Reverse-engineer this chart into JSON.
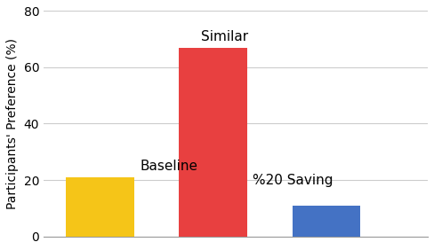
{
  "categories": [
    "Baseline",
    "Similar",
    "%20 Saving"
  ],
  "values": [
    21,
    67,
    11
  ],
  "bar_colors": [
    "#F5C518",
    "#E84040",
    "#4472C4"
  ],
  "bar_labels": [
    "Baseline",
    "Similar",
    "%20 Saving"
  ],
  "ylabel": "Participants' Preference (%)",
  "ylim": [
    0,
    80
  ],
  "yticks": [
    0,
    20,
    40,
    60,
    80
  ],
  "background_color": "#ffffff",
  "grid_color": "#cccccc",
  "bar_width": 0.6,
  "label_fontsize": 11
}
